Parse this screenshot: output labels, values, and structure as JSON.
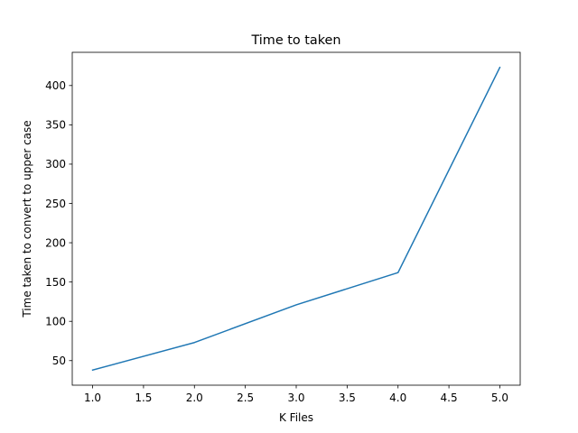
{
  "chart_data": {
    "type": "line",
    "title": "Time to taken",
    "xlabel": "K Files",
    "ylabel": "Time taken to convert to upper case",
    "x": [
      1.0,
      2.0,
      3.0,
      4.0,
      5.0
    ],
    "series": [
      {
        "values": [
          38,
          73,
          121,
          162,
          423
        ],
        "color": "#1f77b4"
      }
    ],
    "xlim": [
      0.8,
      5.2
    ],
    "ylim": [
      18.75,
      442.25
    ],
    "xticks": [
      1.0,
      1.5,
      2.0,
      2.5,
      3.0,
      3.5,
      4.0,
      4.5,
      5.0
    ],
    "xtick_labels": [
      "1.0",
      "1.5",
      "2.0",
      "2.5",
      "3.0",
      "3.5",
      "4.0",
      "4.5",
      "5.0"
    ],
    "yticks": [
      50,
      100,
      150,
      200,
      250,
      300,
      350,
      400
    ],
    "ytick_labels": [
      "50",
      "100",
      "150",
      "200",
      "250",
      "300",
      "350",
      "400"
    ],
    "grid": false,
    "legend": "none"
  }
}
